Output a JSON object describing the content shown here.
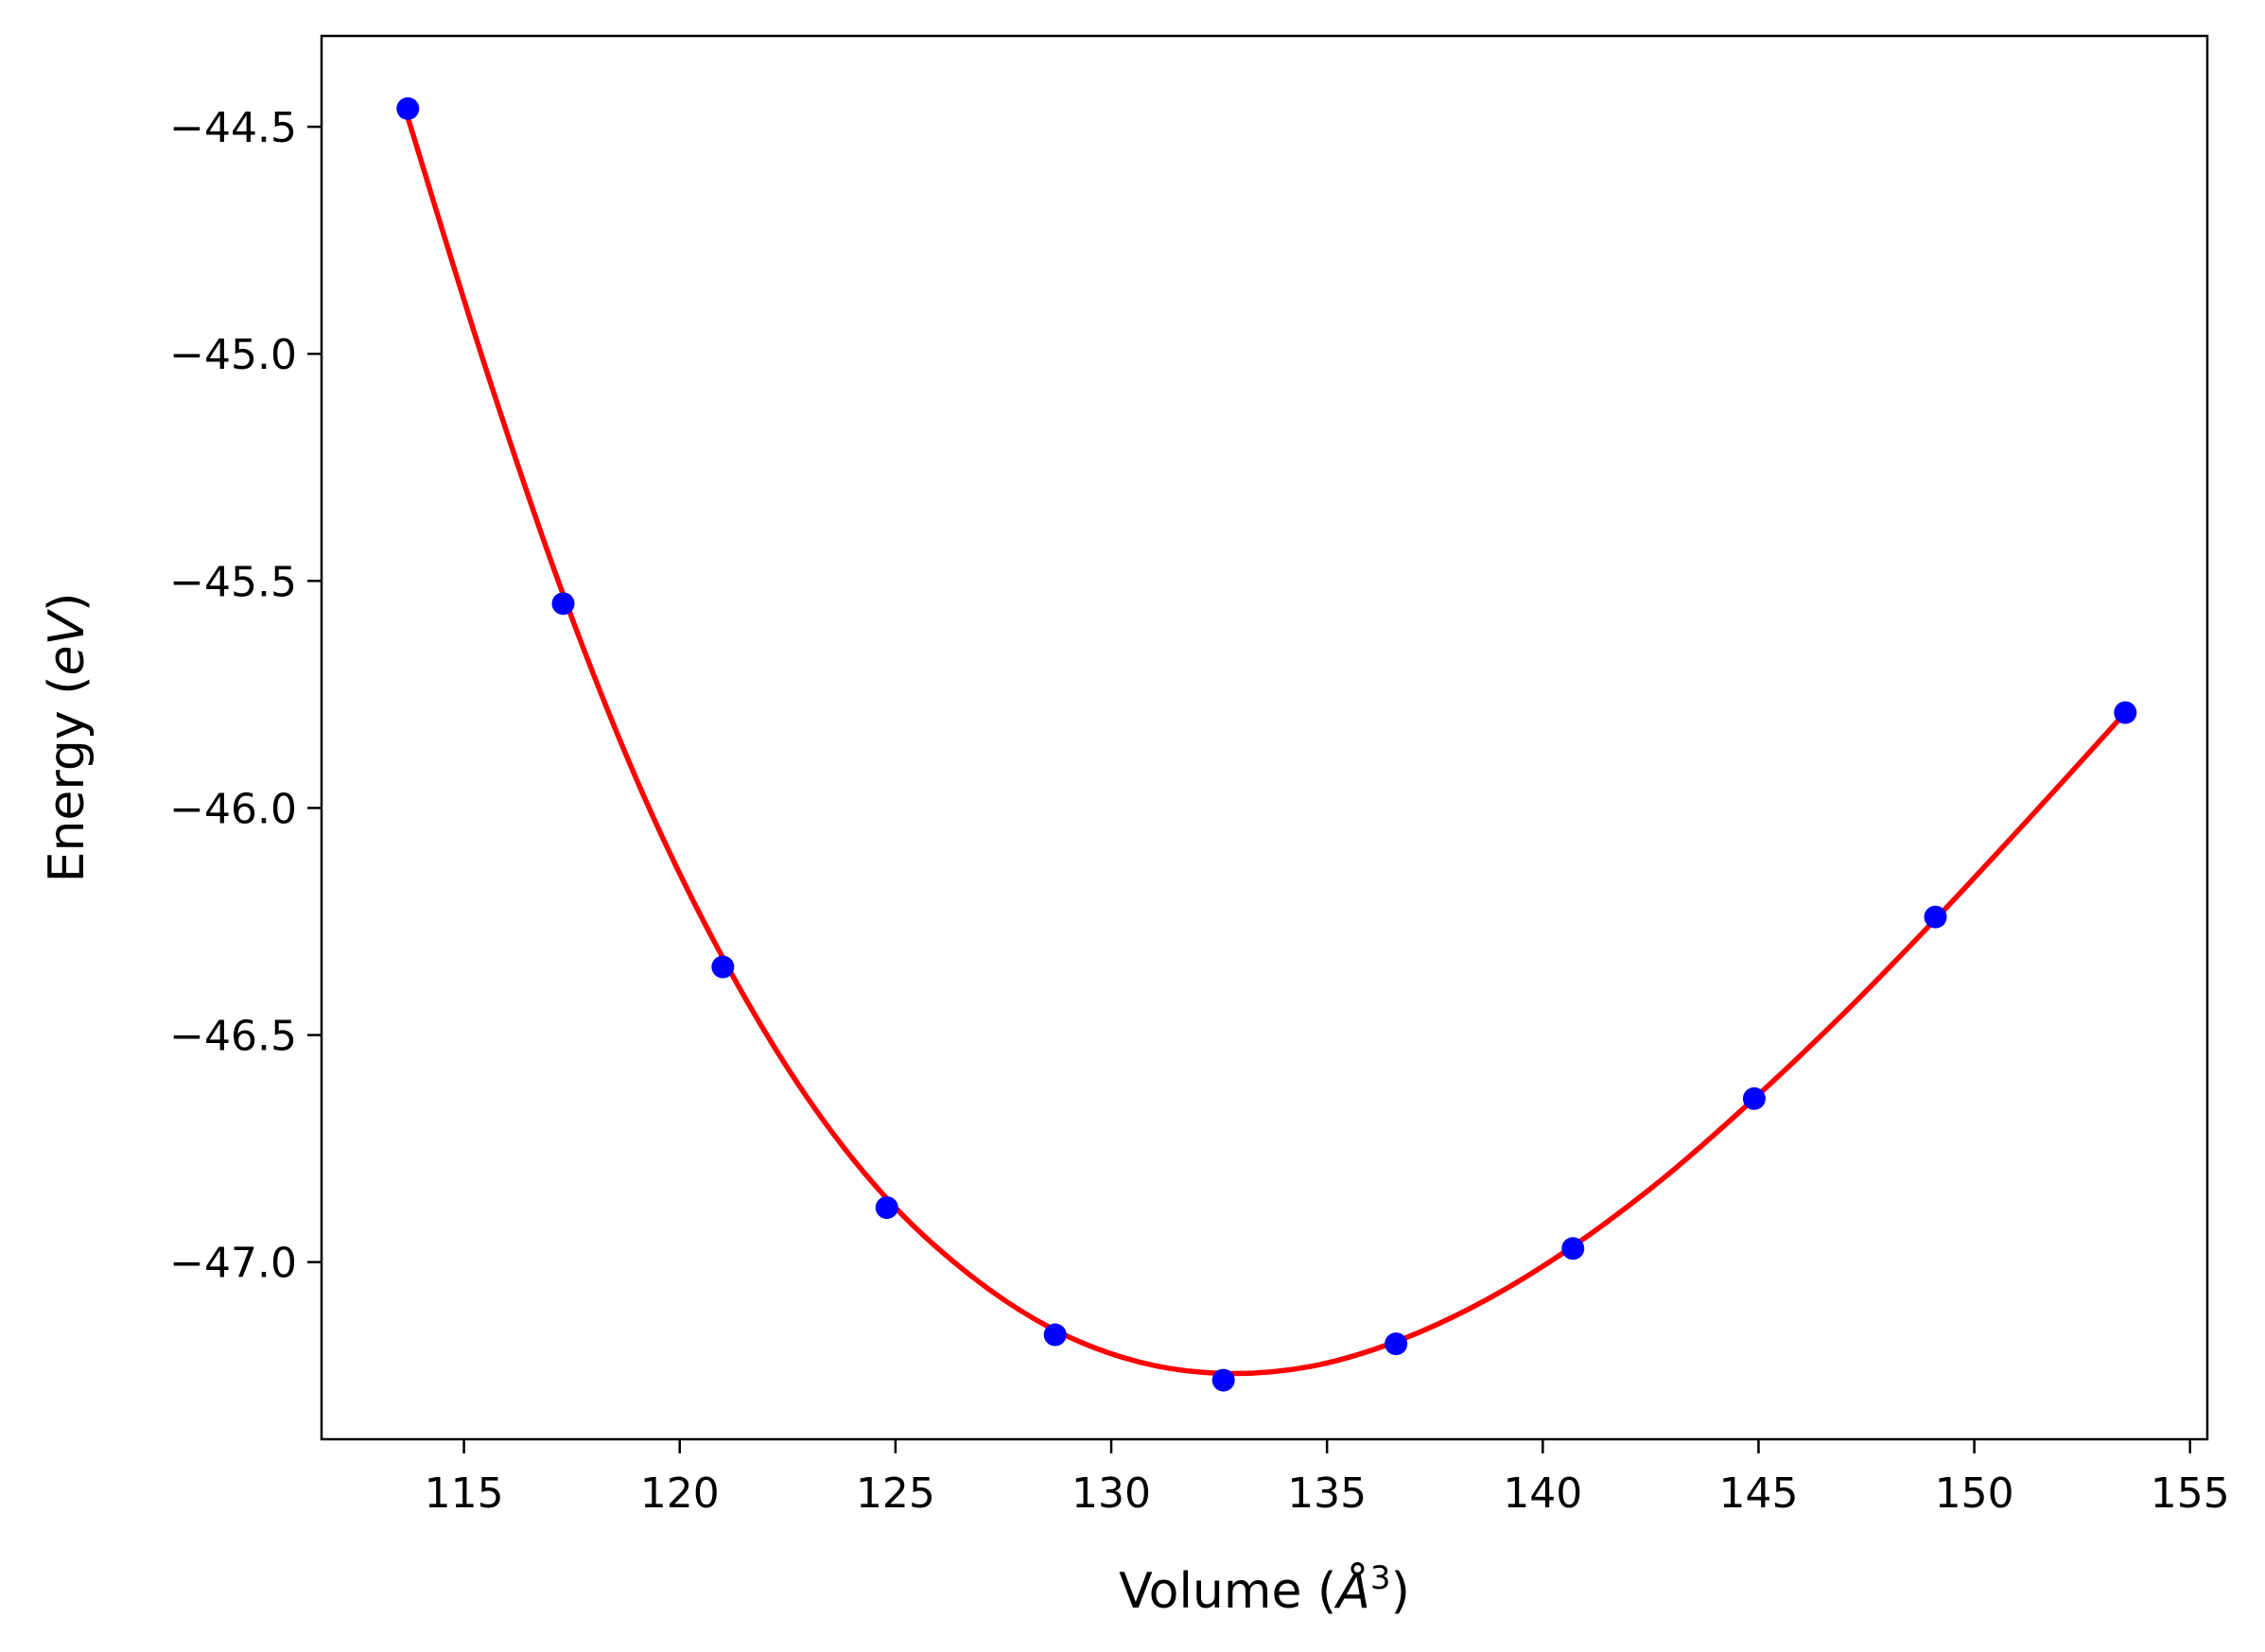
{
  "chart_data": {
    "type": "scatter",
    "xlabel_prefix": "Volume (",
    "xlabel_symbol": "Å",
    "xlabel_sup": "3",
    "xlabel_suffix": ")",
    "ylabel_prefix": "Energy (",
    "ylabel_symbol": "eV",
    "ylabel_suffix": ")",
    "xlim": [
      111.7,
      155.4
    ],
    "ylim": [
      -47.39,
      -44.3
    ],
    "x_ticks": [
      115,
      120,
      125,
      130,
      135,
      140,
      145,
      150,
      155
    ],
    "x_tick_labels": [
      "115",
      "120",
      "125",
      "130",
      "135",
      "140",
      "145",
      "150",
      "155"
    ],
    "y_ticks": [
      -44.5,
      -45.0,
      -45.5,
      -46.0,
      -46.5,
      -47.0
    ],
    "y_tick_labels": [
      "−44.5",
      "−45.0",
      "−45.5",
      "−46.0",
      "−46.5",
      "−47.0"
    ],
    "grid": false,
    "series": [
      {
        "kind": "points",
        "color": "#0000ff",
        "x": [
          113.7,
          117.3,
          121.0,
          124.8,
          128.7,
          132.6,
          136.6,
          140.7,
          144.9,
          149.1,
          153.5
        ],
        "y": [
          -44.46,
          -45.55,
          -46.35,
          -46.88,
          -47.16,
          -47.26,
          -47.18,
          -46.97,
          -46.64,
          -46.24,
          -45.79
        ]
      },
      {
        "kind": "fit-curve",
        "color": "#ff0000",
        "x": [
          113.7,
          115.5,
          117.3,
          119.15,
          121.0,
          122.9,
          124.8,
          126.75,
          128.7,
          130.65,
          132.6,
          134.6,
          136.6,
          138.65,
          140.7,
          142.8,
          144.9,
          147.0,
          149.1,
          151.3,
          153.5
        ],
        "y": [
          -44.48,
          -45.03,
          -45.53,
          -45.97,
          -46.33,
          -46.63,
          -46.86,
          -47.03,
          -47.15,
          -47.22,
          -47.245,
          -47.23,
          -47.175,
          -47.085,
          -46.965,
          -46.815,
          -46.64,
          -46.45,
          -46.245,
          -46.02,
          -45.79
        ]
      }
    ]
  }
}
